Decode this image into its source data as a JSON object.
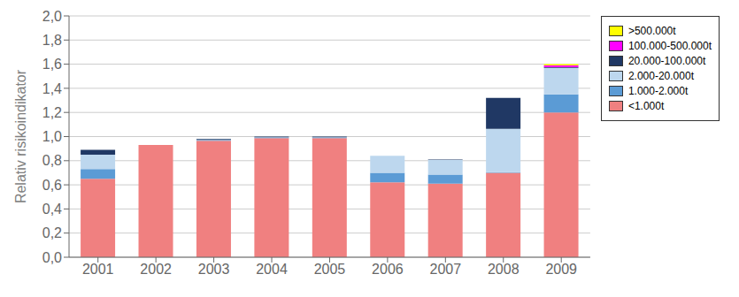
{
  "chart_data": {
    "type": "bar",
    "stacked": true,
    "ylabel": "Relativ risikoindikator",
    "categories": [
      "2001",
      "2002",
      "2003",
      "2004",
      "2005",
      "2006",
      "2007",
      "2008",
      "2009"
    ],
    "series": [
      {
        "name": "<1.000t",
        "color": "#F08080",
        "values": [
          0.65,
          0.93,
          0.965,
          0.988,
          0.988,
          0.62,
          0.61,
          0.7,
          1.2
        ]
      },
      {
        "name": "1.000-2.000t",
        "color": "#5B9BD5",
        "values": [
          0.08,
          0.0,
          0.005,
          0.005,
          0.005,
          0.08,
          0.075,
          0.005,
          0.15
        ]
      },
      {
        "name": "2.000-20.000t",
        "color": "#BDD7EE",
        "values": [
          0.12,
          0.0,
          0.003,
          0.002,
          0.002,
          0.14,
          0.12,
          0.36,
          0.22
        ]
      },
      {
        "name": "20.000-100.000t",
        "color": "#203864",
        "values": [
          0.04,
          0.0,
          0.007,
          0.005,
          0.005,
          0.0,
          0.005,
          0.255,
          0.005
        ]
      },
      {
        "name": "100.000-500.000t",
        "color": "#FF00FF",
        "values": [
          0.0,
          0.0,
          0.0,
          0.0,
          0.0,
          0.0,
          0.0,
          0.0,
          0.015
        ]
      },
      {
        "name": ">500.000t",
        "color": "#FFFF00",
        "values": [
          0.0,
          0.0,
          0.0,
          0.0,
          0.0,
          0.0,
          0.0,
          0.0,
          0.01
        ]
      }
    ],
    "ylim": [
      0.0,
      2.0
    ],
    "yticks": [
      {
        "value": 0.0,
        "label": "0,0"
      },
      {
        "value": 0.2,
        "label": "0,2"
      },
      {
        "value": 0.4,
        "label": "0,4"
      },
      {
        "value": 0.6,
        "label": "0,6"
      },
      {
        "value": 0.8,
        "label": "0,8"
      },
      {
        "value": 1.0,
        "label": "1,0"
      },
      {
        "value": 1.2,
        "label": "1,2"
      },
      {
        "value": 1.4,
        "label": "1,4"
      },
      {
        "value": 1.6,
        "label": "1,6"
      },
      {
        "value": 1.8,
        "label": "1,8"
      },
      {
        "value": 2.0,
        "label": "2,0"
      }
    ],
    "grid": true,
    "legend": "right"
  }
}
